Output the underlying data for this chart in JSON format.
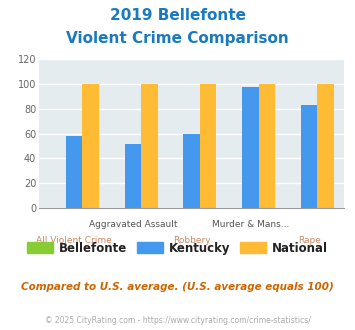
{
  "title_line1": "2019 Bellefonte",
  "title_line2": "Violent Crime Comparison",
  "title_color": "#1a7abf",
  "categories": [
    "All Violent Crime",
    "Aggravated Assault",
    "Robbery",
    "Murder & Mans...",
    "Rape"
  ],
  "top_labels": [
    "",
    "Aggravated Assault",
    "",
    "Murder & Mans...",
    ""
  ],
  "bot_labels": [
    "All Violent Crime",
    "",
    "Robbery",
    "",
    "Rape"
  ],
  "series": {
    "Bellefonte": {
      "values": [
        0,
        0,
        0,
        0,
        0
      ],
      "color": "#88cc33"
    },
    "Kentucky": {
      "values": [
        58,
        52,
        60,
        98,
        83
      ],
      "color": "#4499ee"
    },
    "National": {
      "values": [
        100,
        100,
        100,
        100,
        100
      ],
      "color": "#ffbb33"
    }
  },
  "ylim": [
    0,
    120
  ],
  "yticks": [
    0,
    20,
    40,
    60,
    80,
    100,
    120
  ],
  "plot_bg_color": "#e4ecf0",
  "fig_bg_color": "#ffffff",
  "grid_color": "#ffffff",
  "bar_width": 0.28,
  "footer_note": "Compared to U.S. average. (U.S. average equals 100)",
  "footer_note_color": "#cc6600",
  "footer_credit": "© 2025 CityRating.com - https://www.cityrating.com/crime-statistics/",
  "footer_credit_color": "#aaaaaa",
  "legend_labels": [
    "Bellefonte",
    "Kentucky",
    "National"
  ],
  "legend_colors": [
    "#88cc33",
    "#4499ee",
    "#ffbb33"
  ]
}
